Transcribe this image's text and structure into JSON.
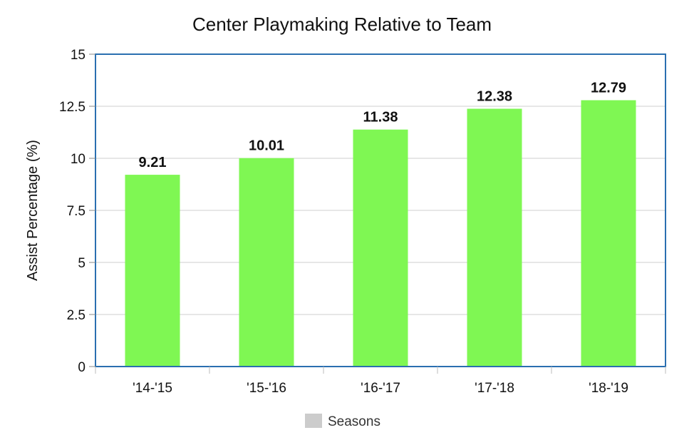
{
  "chart_data": {
    "type": "bar",
    "title": "Center Playmaking Relative to Team",
    "xlabel": "",
    "ylabel": "Assist Percentage (%)",
    "categories": [
      "'14-'15",
      "'15-'16",
      "'16-'17",
      "'17-'18",
      "'18-'19"
    ],
    "values": [
      9.21,
      10.01,
      11.38,
      12.38,
      12.79
    ],
    "data_labels": [
      "9.21",
      "10.01",
      "11.38",
      "12.38",
      "12.79"
    ],
    "ylim": [
      0,
      15
    ],
    "y_ticks": [
      0,
      2.5,
      5,
      7.5,
      10,
      12.5,
      15
    ],
    "y_tick_labels": [
      "0",
      "2.5",
      "5",
      "7.5",
      "10",
      "12.5",
      "15"
    ],
    "grid": true,
    "legend": {
      "placement": "bottom-center",
      "entries": [
        "Seasons"
      ]
    },
    "colors": {
      "bar": "#7ff753",
      "frame": "#2a6fb0",
      "grid": "#cfcfcf",
      "legend_swatch": "#cccccc"
    }
  }
}
